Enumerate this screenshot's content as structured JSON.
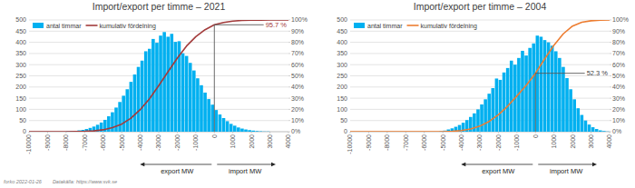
{
  "chart_data": [
    {
      "type": "histogram",
      "title": "Import/export per timme – 2021",
      "bins": [
        -8000,
        -7800,
        -7600,
        -7400,
        -7200,
        -7000,
        -6800,
        -6600,
        -6400,
        -6200,
        -6000,
        -5800,
        -5600,
        -5400,
        -5200,
        -5000,
        -4800,
        -4600,
        -4400,
        -4200,
        -4000,
        -3800,
        -3600,
        -3400,
        -3200,
        -3000,
        -2800,
        -2600,
        -2400,
        -2200,
        -2000,
        -1800,
        -1600,
        -1400,
        -1200,
        -1000,
        -800,
        -600,
        -400,
        -200,
        0,
        200,
        400,
        600,
        800,
        1000,
        1200,
        1400,
        1600,
        1800,
        2000,
        2200,
        2400,
        2600,
        2800,
        3000,
        3200,
        3400,
        3600,
        3800,
        4000
      ],
      "series": [
        {
          "name": "antal timmar",
          "type": "bar",
          "color": "#00b0f0",
          "values": [
            2,
            3,
            4,
            6,
            8,
            12,
            17,
            23,
            31,
            41,
            53,
            69,
            87,
            108,
            133,
            161,
            190,
            223,
            256,
            290,
            318,
            360,
            371,
            415,
            398,
            430,
            446,
            425,
            438,
            402,
            405,
            351,
            339,
            308,
            274,
            239,
            208,
            175,
            146,
            121,
            97,
            77,
            61,
            47,
            35,
            27,
            19,
            14,
            10,
            7,
            5,
            3,
            2,
            1,
            1,
            0,
            0,
            0,
            0,
            0
          ]
        },
        {
          "name": "kumulativ fördelning",
          "type": "line",
          "axis": "y2",
          "color": "#a33b3b",
          "x": [
            -10000,
            -9500,
            -9000,
            -8500,
            -8000,
            -7500,
            -7000,
            -6500,
            -6000,
            -5500,
            -5000,
            -4500,
            -4000,
            -3500,
            -3000,
            -2500,
            -2000,
            -1500,
            -1000,
            -500,
            0,
            500,
            1000,
            1500,
            2000,
            2500,
            3000,
            3500,
            4000
          ],
          "values": [
            0,
            0,
            0,
            0,
            0.03,
            0.1,
            0.3,
            0.7,
            1.7,
            3.6,
            6.8,
            12.1,
            19.8,
            29.5,
            41.3,
            53.6,
            65.9,
            76.7,
            85.1,
            91.3,
            95.7,
            97.7,
            99.0,
            99.6,
            99.8,
            99.9,
            100,
            100,
            100
          ]
        }
      ],
      "xlim": [
        -10000,
        4000
      ],
      "xticks": [
        -10000,
        -9000,
        -8000,
        -7000,
        -6000,
        -5000,
        -4000,
        -3000,
        -2000,
        -1000,
        0,
        1000,
        2000,
        3000,
        4000
      ],
      "ylim": [
        0,
        500
      ],
      "yticks": [
        0,
        50,
        100,
        150,
        200,
        250,
        300,
        350,
        400,
        450,
        500
      ],
      "y2lim": [
        0,
        100
      ],
      "y2ticks": [
        {
          "value": 0,
          "label": "0%"
        },
        {
          "value": 10,
          "label": "10%"
        },
        {
          "value": 20,
          "label": "20%"
        },
        {
          "value": 30,
          "label": "30%"
        },
        {
          "value": 40,
          "label": "40%"
        },
        {
          "value": 50,
          "label": "50%"
        },
        {
          "value": 60,
          "label": "60%"
        },
        {
          "value": 70,
          "label": "70%"
        },
        {
          "value": 80,
          "label": "80%"
        },
        {
          "value": 90,
          "label": "90%"
        },
        {
          "value": 100,
          "label": "100%"
        }
      ],
      "grid": true,
      "legend": "upper left",
      "xlabel": [
        "export MW",
        "import MW"
      ],
      "annotations": [
        {
          "text": "95.7 %",
          "x": 0,
          "y": 95.7,
          "axis": "y2",
          "color": "#a33b3b"
        }
      ]
    },
    {
      "type": "histogram",
      "title": "Import/export per timme – 2004",
      "bins": [
        -8000,
        -7800,
        -7600,
        -7400,
        -7200,
        -7000,
        -6800,
        -6600,
        -6400,
        -6200,
        -6000,
        -5800,
        -5600,
        -5400,
        -5200,
        -5000,
        -4800,
        -4600,
        -4400,
        -4200,
        -4000,
        -3800,
        -3600,
        -3400,
        -3200,
        -3000,
        -2800,
        -2600,
        -2400,
        -2200,
        -2000,
        -1800,
        -1600,
        -1400,
        -1200,
        -1000,
        -800,
        -600,
        -400,
        -200,
        0,
        200,
        400,
        600,
        800,
        1000,
        1200,
        1400,
        1600,
        1800,
        2000,
        2200,
        2400,
        2600,
        2800,
        3000,
        3200,
        3400,
        3600,
        3800,
        4000
      ],
      "series": [
        {
          "name": "antal timmar",
          "type": "bar",
          "color": "#00b0f0",
          "values": [
            0,
            0,
            0,
            0,
            0,
            0,
            0,
            0,
            0,
            0,
            0,
            0,
            0,
            0,
            2,
            5,
            10,
            15,
            22,
            30,
            40,
            52,
            66,
            82,
            100,
            122,
            145,
            170,
            195,
            238,
            232,
            265,
            285,
            318,
            300,
            330,
            362,
            341,
            375,
            395,
            430,
            425,
            410,
            400,
            385,
            360,
            330,
            290,
            240,
            190,
            145,
            105,
            75,
            50,
            32,
            20,
            12,
            6,
            3,
            1
          ]
        },
        {
          "name": "kumulativ fördelning",
          "type": "line",
          "axis": "y2",
          "color": "#ed7d31",
          "x": [
            -10000,
            -9500,
            -9000,
            -8500,
            -8000,
            -7500,
            -7000,
            -6500,
            -6000,
            -5500,
            -5000,
            -4500,
            -4000,
            -3500,
            -3000,
            -2500,
            -2000,
            -1500,
            -1000,
            -500,
            0,
            500,
            1000,
            1500,
            2000,
            2500,
            3000,
            3500,
            4000
          ],
          "values": [
            0,
            0,
            0,
            0,
            0,
            0,
            0,
            0,
            0,
            0,
            0,
            0.3,
            1.0,
            2.5,
            5.0,
            9.2,
            15.2,
            22.9,
            32.0,
            41.5,
            52.3,
            65.2,
            77.5,
            87.6,
            94.6,
            98.0,
            99.3,
            99.9,
            100
          ]
        }
      ],
      "xlim": [
        -10000,
        4000
      ],
      "xticks": [
        -10000,
        -9000,
        -8000,
        -7000,
        -6000,
        -5000,
        -4000,
        -3000,
        -2000,
        -1000,
        0,
        1000,
        2000,
        3000,
        4000
      ],
      "ylim": [
        0,
        500
      ],
      "yticks": [
        0,
        50,
        100,
        150,
        200,
        250,
        300,
        350,
        400,
        450,
        500
      ],
      "y2lim": [
        0,
        100
      ],
      "y2ticks": [
        {
          "value": 0,
          "label": "0%"
        },
        {
          "value": 10,
          "label": "10%"
        },
        {
          "value": 20,
          "label": "20%"
        },
        {
          "value": 30,
          "label": "30%"
        },
        {
          "value": 40,
          "label": "40%"
        },
        {
          "value": 50,
          "label": "50%"
        },
        {
          "value": 60,
          "label": "60%"
        },
        {
          "value": 70,
          "label": "70%"
        },
        {
          "value": 80,
          "label": "80%"
        },
        {
          "value": 90,
          "label": "90%"
        },
        {
          "value": 100,
          "label": "100%"
        }
      ],
      "grid": true,
      "legend": "upper left",
      "xlabel": [
        "export MW",
        "import MW"
      ],
      "annotations": [
        {
          "text": "52.3 %",
          "x": 0,
          "y": 52.3,
          "axis": "y2",
          "color": "#404040"
        }
      ]
    }
  ],
  "footer": {
    "author": "forko 2022-01-26",
    "source": "Datakälla: https://www.svk.se"
  }
}
